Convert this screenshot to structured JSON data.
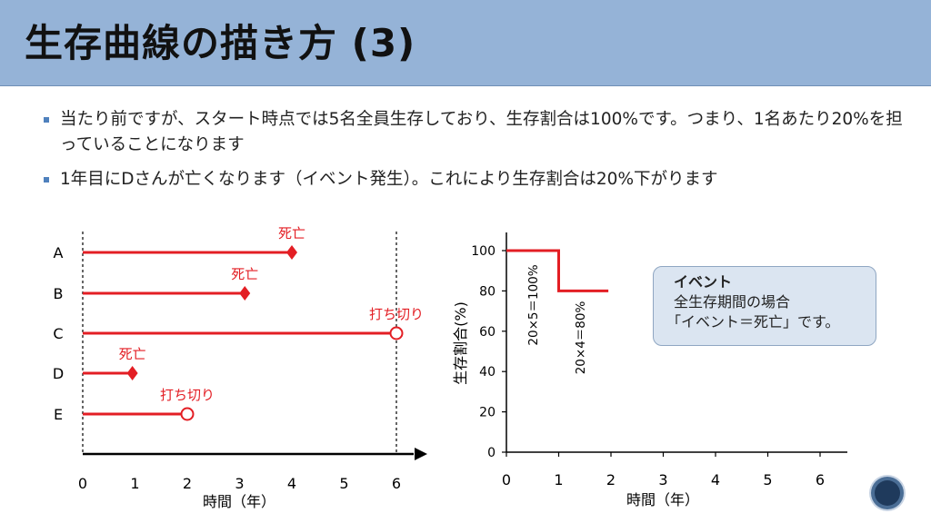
{
  "slide": {
    "title": "生存曲線の描き方 (3)",
    "bullets": [
      "当たり前ですが、スタート時点では5名全員生存しており、生存割合は100%です。つまり、1名あたり20%を担っていることになります",
      "1年目にDさんが亡くなります（イベント発生）。これにより生存割合は20%下がります"
    ]
  },
  "colors": {
    "accent": "#e31e24",
    "title_bar": "#95b3d7",
    "bullet": "#4f81bd",
    "box": "#dbe5f1"
  },
  "left_chart": {
    "xlabel": "時間（年）",
    "x_ticks": [
      "0",
      "1",
      "2",
      "3",
      "4",
      "5",
      "6"
    ],
    "subjects": [
      {
        "name": "A",
        "end": 4,
        "event": "死亡",
        "marker": "diamond"
      },
      {
        "name": "B",
        "end": 3.1,
        "event": "死亡",
        "marker": "diamond"
      },
      {
        "name": "C",
        "end": 6,
        "event": "打ち切り",
        "marker": "circle"
      },
      {
        "name": "D",
        "end": 0.95,
        "event": "死亡",
        "marker": "diamond"
      },
      {
        "name": "E",
        "end": 2,
        "event": "打ち切り",
        "marker": "circle"
      }
    ]
  },
  "chart_data": {
    "type": "line",
    "xlabel": "時間（年）",
    "ylabel": "生存割合(%)",
    "xlim": [
      0,
      6.5
    ],
    "ylim": [
      0,
      105
    ],
    "x_ticks": [
      "0",
      "1",
      "2",
      "3",
      "4",
      "5",
      "6"
    ],
    "y_ticks": [
      "0",
      "20",
      "40",
      "60",
      "80",
      "100"
    ],
    "series": [
      {
        "values": [
          [
            0,
            100
          ],
          [
            1,
            100
          ],
          [
            1,
            80
          ],
          [
            1.95,
            80
          ]
        ]
      }
    ],
    "annotations": [
      "20×5＝100%",
      "20×4＝80%"
    ]
  },
  "info_box": {
    "title": "イベント",
    "line1": "全生存期間の場合",
    "line2": "「イベント＝死亡」です。"
  }
}
